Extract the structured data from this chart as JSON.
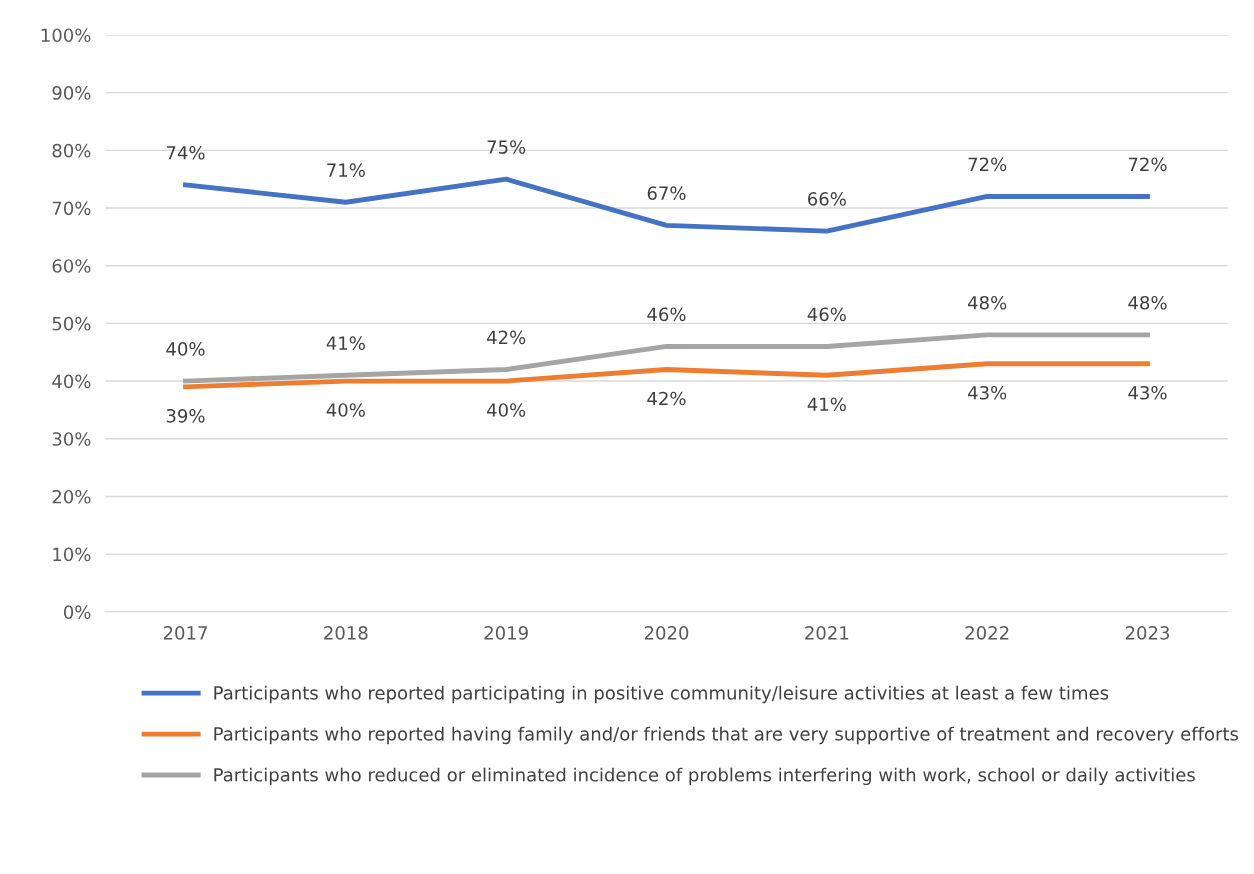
{
  "chart_data": {
    "type": "line",
    "categories": [
      "2017",
      "2018",
      "2019",
      "2020",
      "2021",
      "2022",
      "2023"
    ],
    "series": [
      {
        "name": "Participants who reported participating in positive community/leisure activities at least a few times",
        "color": "#4472c4",
        "values": [
          74,
          71,
          75,
          67,
          66,
          72,
          72
        ],
        "value_labels": [
          "74%",
          "71%",
          "75%",
          "67%",
          "66%",
          "72%",
          "72%"
        ]
      },
      {
        "name": "Participants who reported having family and/or friends that are very supportive of treatment and recovery efforts",
        "color": "#ed7d31",
        "values": [
          39,
          40,
          40,
          42,
          41,
          43,
          43
        ],
        "value_labels": [
          "39%",
          "40%",
          "40%",
          "42%",
          "41%",
          "43%",
          "43%"
        ]
      },
      {
        "name": "Participants who reduced or eliminated incidence of problems interfering with work, school or daily activities",
        "color": "#a5a5a5",
        "values": [
          40,
          41,
          42,
          46,
          46,
          48,
          48
        ],
        "value_labels": [
          "40%",
          "41%",
          "42%",
          "46%",
          "46%",
          "48%",
          "48%"
        ]
      }
    ],
    "ylim": [
      0,
      100
    ],
    "yticks": [
      {
        "value": 0,
        "label": "0%"
      },
      {
        "value": 10,
        "label": "10%"
      },
      {
        "value": 20,
        "label": "20%"
      },
      {
        "value": 30,
        "label": "30%"
      },
      {
        "value": 40,
        "label": "40%"
      },
      {
        "value": 50,
        "label": "50%"
      },
      {
        "value": 60,
        "label": "60%"
      },
      {
        "value": 70,
        "label": "70%"
      },
      {
        "value": 80,
        "label": "80%"
      },
      {
        "value": 90,
        "label": "90%"
      },
      {
        "value": 100,
        "label": "100%"
      }
    ],
    "grid": "y",
    "legend": "bottom",
    "marker": "none",
    "line_style": "solid"
  }
}
